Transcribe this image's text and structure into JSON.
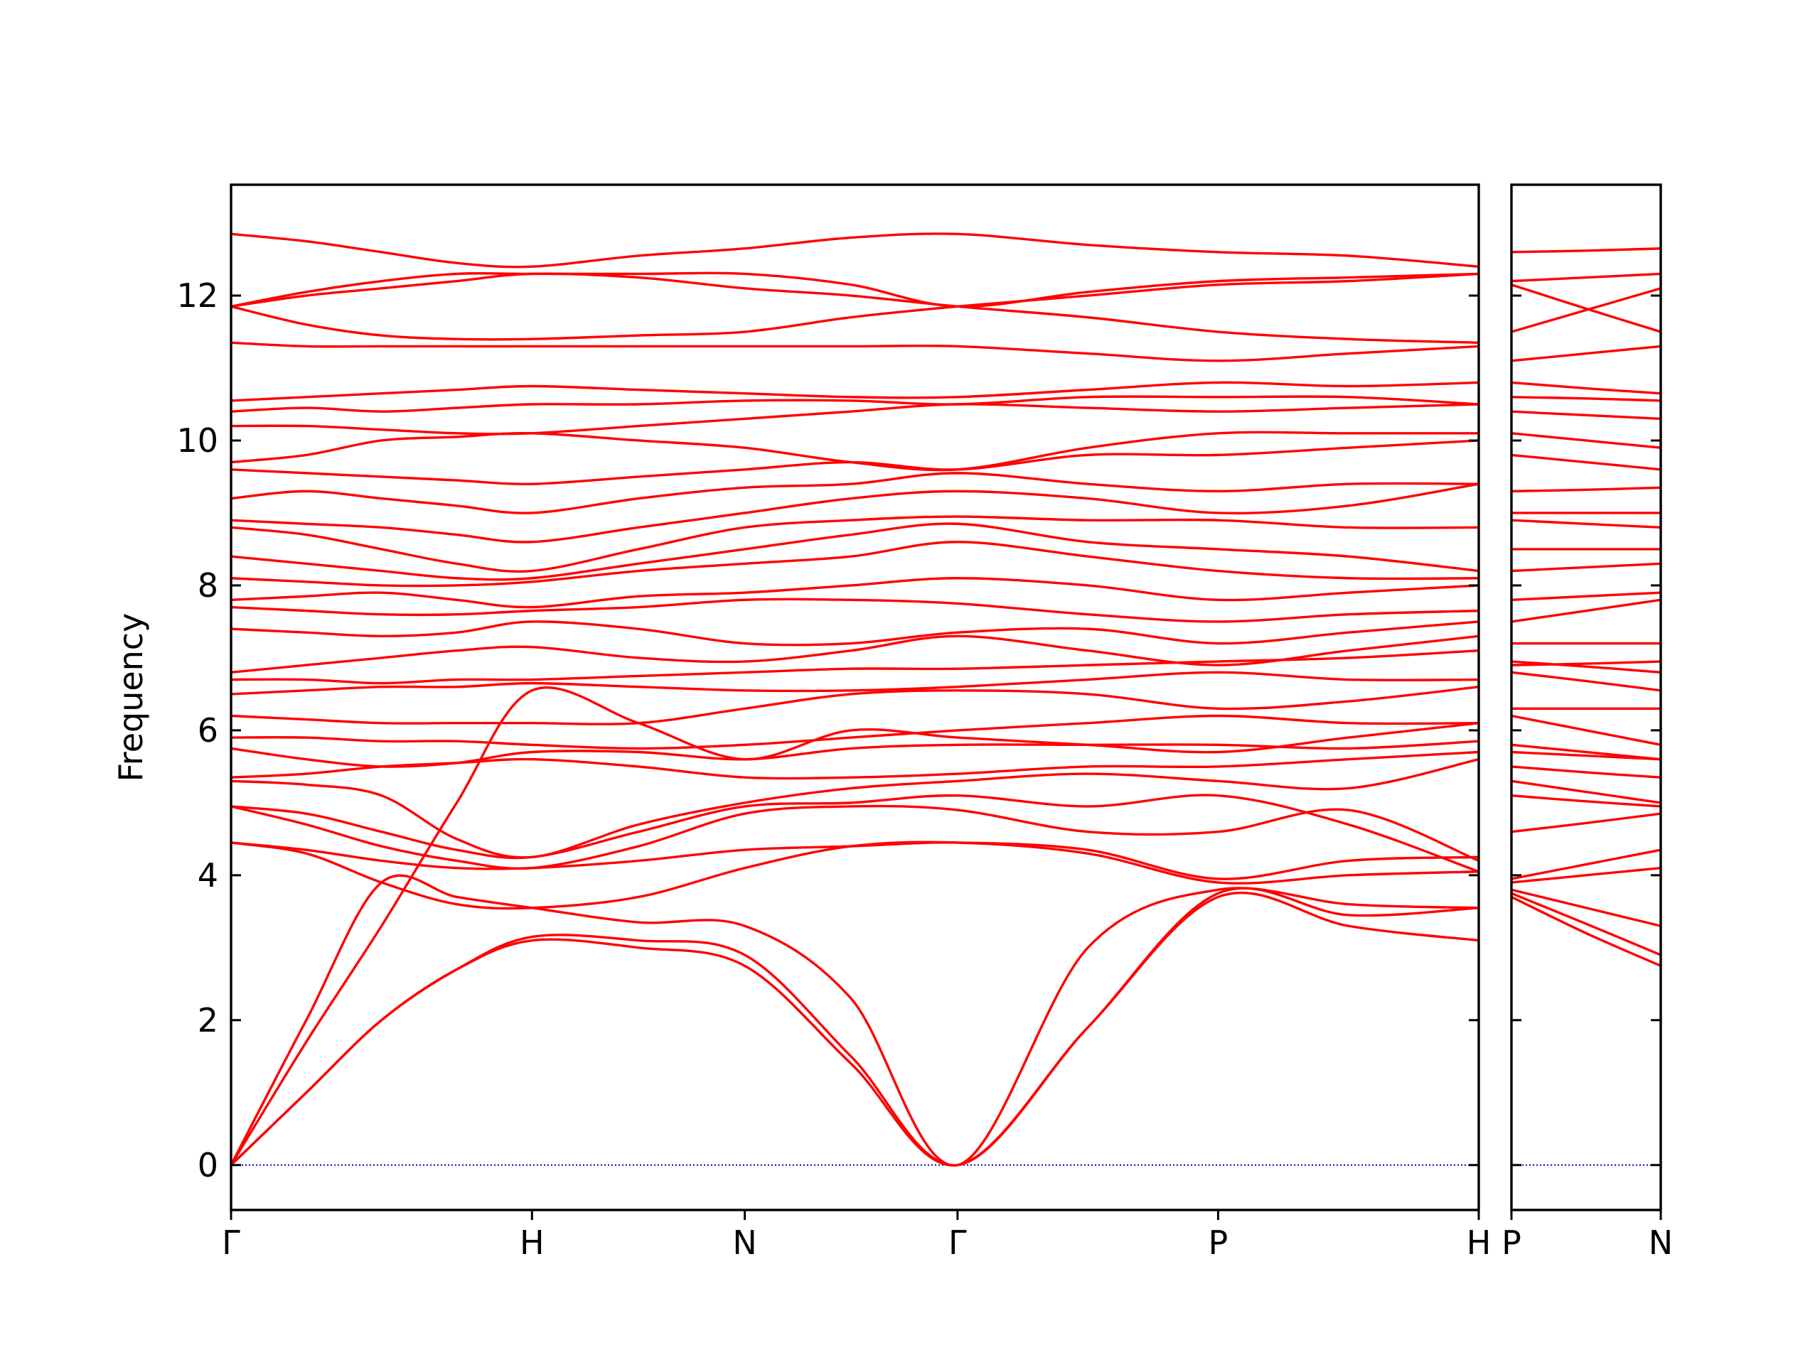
{
  "chart_data": [
    {
      "type": "line",
      "ylabel": "Frequency",
      "color": "#ff0000",
      "zero_line_color": "#0000cc",
      "xlim": [
        0,
        4.146
      ],
      "ylim": [
        -0.62,
        13.53
      ],
      "yticks": [
        0,
        2,
        4,
        6,
        8,
        10,
        12
      ],
      "show_ytick_labels": true,
      "xticks": [
        {
          "value": 0,
          "label": "Γ"
        },
        {
          "value": 1,
          "label": "H"
        },
        {
          "value": 1.707,
          "label": "N"
        },
        {
          "value": 2.414,
          "label": "Γ"
        },
        {
          "value": 3.28,
          "label": "P"
        },
        {
          "value": 4.146,
          "label": "H"
        }
      ],
      "x": [
        0,
        0.25,
        0.5,
        0.75,
        1,
        1.354,
        1.707,
        2.06,
        2.414,
        2.847,
        3.28,
        3.713,
        4.146
      ],
      "series": [
        {
          "values": [
            0,
            1.0,
            2.0,
            2.7,
            3.1,
            3.0,
            2.75,
            1.4,
            0,
            1.9,
            3.7,
            3.3,
            3.1
          ]
        },
        {
          "values": [
            0,
            1.0,
            2.0,
            2.7,
            3.15,
            3.1,
            2.9,
            1.5,
            0,
            1.9,
            3.75,
            3.45,
            3.55
          ]
        },
        {
          "values": [
            0,
            2.0,
            3.9,
            3.7,
            3.55,
            3.35,
            3.3,
            2.3,
            0,
            3.0,
            3.8,
            3.6,
            3.55
          ]
        },
        {
          "values": [
            0,
            1.7,
            3.3,
            5.0,
            6.55,
            6.1,
            5.6,
            6.0,
            5.9,
            5.8,
            5.7,
            5.9,
            6.1
          ]
        },
        {
          "values": [
            4.45,
            4.3,
            3.9,
            3.6,
            3.55,
            3.7,
            4.1,
            4.4,
            4.45,
            4.3,
            3.9,
            4.0,
            4.05
          ]
        },
        {
          "values": [
            4.45,
            4.35,
            4.2,
            4.1,
            4.1,
            4.2,
            4.35,
            4.4,
            4.45,
            4.35,
            3.95,
            4.2,
            4.25
          ]
        },
        {
          "values": [
            4.95,
            4.7,
            4.4,
            4.2,
            4.1,
            4.4,
            4.85,
            4.95,
            4.9,
            4.6,
            4.6,
            4.9,
            4.2
          ]
        },
        {
          "values": [
            4.95,
            4.85,
            4.6,
            4.35,
            4.25,
            4.6,
            4.95,
            5.0,
            5.1,
            4.95,
            5.1,
            4.7,
            4.05
          ]
        },
        {
          "values": [
            5.3,
            5.25,
            5.1,
            4.5,
            4.25,
            4.7,
            5.0,
            5.2,
            5.3,
            5.4,
            5.3,
            5.2,
            5.6
          ]
        },
        {
          "values": [
            5.35,
            5.4,
            5.5,
            5.55,
            5.6,
            5.5,
            5.35,
            5.35,
            5.4,
            5.5,
            5.5,
            5.6,
            5.7
          ]
        },
        {
          "values": [
            5.75,
            5.6,
            5.5,
            5.55,
            5.7,
            5.7,
            5.6,
            5.75,
            5.8,
            5.8,
            5.8,
            5.75,
            5.85
          ]
        },
        {
          "values": [
            5.9,
            5.9,
            5.85,
            5.85,
            5.8,
            5.75,
            5.8,
            5.9,
            6.0,
            6.1,
            6.2,
            6.1,
            6.1
          ]
        },
        {
          "values": [
            6.2,
            6.15,
            6.1,
            6.1,
            6.1,
            6.1,
            6.3,
            6.5,
            6.55,
            6.5,
            6.3,
            6.4,
            6.6
          ]
        },
        {
          "values": [
            6.5,
            6.55,
            6.6,
            6.6,
            6.65,
            6.6,
            6.55,
            6.55,
            6.6,
            6.7,
            6.8,
            6.7,
            6.7
          ]
        },
        {
          "values": [
            6.7,
            6.7,
            6.65,
            6.7,
            6.7,
            6.75,
            6.8,
            6.85,
            6.85,
            6.9,
            6.95,
            7.0,
            7.1
          ]
        },
        {
          "values": [
            6.8,
            6.9,
            7.0,
            7.1,
            7.15,
            7.0,
            6.95,
            7.1,
            7.3,
            7.1,
            6.9,
            7.1,
            7.3
          ]
        },
        {
          "values": [
            7.4,
            7.35,
            7.3,
            7.35,
            7.5,
            7.4,
            7.2,
            7.2,
            7.35,
            7.4,
            7.2,
            7.35,
            7.5
          ]
        },
        {
          "values": [
            7.7,
            7.65,
            7.6,
            7.6,
            7.65,
            7.7,
            7.8,
            7.8,
            7.75,
            7.6,
            7.5,
            7.6,
            7.65
          ]
        },
        {
          "values": [
            7.8,
            7.85,
            7.9,
            7.8,
            7.7,
            7.85,
            7.9,
            8.0,
            8.1,
            8.0,
            7.8,
            7.9,
            8.0
          ]
        },
        {
          "values": [
            8.1,
            8.05,
            8.0,
            8.0,
            8.05,
            8.2,
            8.3,
            8.4,
            8.6,
            8.4,
            8.2,
            8.1,
            8.1
          ]
        },
        {
          "values": [
            8.4,
            8.3,
            8.2,
            8.1,
            8.1,
            8.3,
            8.5,
            8.7,
            8.85,
            8.6,
            8.5,
            8.4,
            8.2
          ]
        },
        {
          "values": [
            8.8,
            8.7,
            8.5,
            8.3,
            8.2,
            8.5,
            8.8,
            8.9,
            8.95,
            8.9,
            8.9,
            8.8,
            8.8
          ]
        },
        {
          "values": [
            8.9,
            8.85,
            8.8,
            8.7,
            8.6,
            8.8,
            9.0,
            9.2,
            9.3,
            9.2,
            9.0,
            9.1,
            9.4
          ]
        },
        {
          "values": [
            9.2,
            9.3,
            9.2,
            9.1,
            9.0,
            9.2,
            9.35,
            9.4,
            9.55,
            9.4,
            9.3,
            9.4,
            9.4
          ]
        },
        {
          "values": [
            9.6,
            9.55,
            9.5,
            9.45,
            9.4,
            9.5,
            9.6,
            9.7,
            9.6,
            9.8,
            9.8,
            9.9,
            10.0
          ]
        },
        {
          "values": [
            9.7,
            9.8,
            10.0,
            10.05,
            10.1,
            10.0,
            9.9,
            9.7,
            9.6,
            9.9,
            10.1,
            10.1,
            10.1
          ]
        },
        {
          "values": [
            10.2,
            10.2,
            10.15,
            10.1,
            10.1,
            10.2,
            10.3,
            10.4,
            10.5,
            10.45,
            10.4,
            10.45,
            10.5
          ]
        },
        {
          "values": [
            10.4,
            10.45,
            10.4,
            10.45,
            10.5,
            10.5,
            10.55,
            10.55,
            10.5,
            10.6,
            10.6,
            10.6,
            10.5
          ]
        },
        {
          "values": [
            10.55,
            10.6,
            10.65,
            10.7,
            10.75,
            10.7,
            10.65,
            10.6,
            10.6,
            10.7,
            10.8,
            10.75,
            10.8
          ]
        },
        {
          "values": [
            11.35,
            11.3,
            11.3,
            11.3,
            11.3,
            11.3,
            11.3,
            11.3,
            11.3,
            11.2,
            11.1,
            11.2,
            11.3
          ]
        },
        {
          "values": [
            11.85,
            11.6,
            11.45,
            11.4,
            11.4,
            11.45,
            11.5,
            11.7,
            11.85,
            12.0,
            12.15,
            12.2,
            12.3
          ]
        },
        {
          "values": [
            11.85,
            12.0,
            12.1,
            12.2,
            12.3,
            12.25,
            12.1,
            12.0,
            11.85,
            11.7,
            11.5,
            11.4,
            11.35
          ]
        },
        {
          "values": [
            11.85,
            12.05,
            12.2,
            12.3,
            12.3,
            12.3,
            12.3,
            12.15,
            11.85,
            12.05,
            12.2,
            12.25,
            12.3
          ]
        },
        {
          "values": [
            12.85,
            12.75,
            12.6,
            12.45,
            12.4,
            12.55,
            12.65,
            12.8,
            12.85,
            12.7,
            12.6,
            12.55,
            12.4
          ]
        }
      ]
    },
    {
      "type": "line",
      "color": "#ff0000",
      "zero_line_color": "#0000cc",
      "xlim": [
        0,
        0.5
      ],
      "ylim": [
        -0.62,
        13.53
      ],
      "yticks": [
        0,
        2,
        4,
        6,
        8,
        10,
        12
      ],
      "show_ytick_labels": false,
      "xticks": [
        {
          "value": 0,
          "label": "P"
        },
        {
          "value": 0.5,
          "label": "N"
        }
      ],
      "x": [
        0,
        0.25,
        0.5
      ],
      "series": [
        {
          "values": [
            3.7,
            3.2,
            2.75
          ]
        },
        {
          "values": [
            3.75,
            3.33,
            2.9
          ]
        },
        {
          "values": [
            3.8,
            3.55,
            3.3
          ]
        },
        {
          "values": [
            5.7,
            5.65,
            5.6
          ]
        },
        {
          "values": [
            3.9,
            4.0,
            4.1
          ]
        },
        {
          "values": [
            3.95,
            4.15,
            4.35
          ]
        },
        {
          "values": [
            4.6,
            4.72,
            4.85
          ]
        },
        {
          "values": [
            5.1,
            5.02,
            4.95
          ]
        },
        {
          "values": [
            5.3,
            5.15,
            5.0
          ]
        },
        {
          "values": [
            5.5,
            5.42,
            5.35
          ]
        },
        {
          "values": [
            5.8,
            5.7,
            5.6
          ]
        },
        {
          "values": [
            6.2,
            6.0,
            5.8
          ]
        },
        {
          "values": [
            6.3,
            6.3,
            6.3
          ]
        },
        {
          "values": [
            6.8,
            6.68,
            6.55
          ]
        },
        {
          "values": [
            6.95,
            6.88,
            6.8
          ]
        },
        {
          "values": [
            6.9,
            6.92,
            6.95
          ]
        },
        {
          "values": [
            7.2,
            7.2,
            7.2
          ]
        },
        {
          "values": [
            7.5,
            7.65,
            7.8
          ]
        },
        {
          "values": [
            7.8,
            7.85,
            7.9
          ]
        },
        {
          "values": [
            8.2,
            8.25,
            8.3
          ]
        },
        {
          "values": [
            8.5,
            8.5,
            8.5
          ]
        },
        {
          "values": [
            8.9,
            8.85,
            8.8
          ]
        },
        {
          "values": [
            9.0,
            9.0,
            9.0
          ]
        },
        {
          "values": [
            9.3,
            9.32,
            9.35
          ]
        },
        {
          "values": [
            9.8,
            9.7,
            9.6
          ]
        },
        {
          "values": [
            10.1,
            10.0,
            9.9
          ]
        },
        {
          "values": [
            10.4,
            10.35,
            10.3
          ]
        },
        {
          "values": [
            10.6,
            10.58,
            10.55
          ]
        },
        {
          "values": [
            10.8,
            10.72,
            10.65
          ]
        },
        {
          "values": [
            11.1,
            11.2,
            11.3
          ]
        },
        {
          "values": [
            12.15,
            11.82,
            11.5
          ]
        },
        {
          "values": [
            11.5,
            11.8,
            12.1
          ]
        },
        {
          "values": [
            12.2,
            12.25,
            12.3
          ]
        },
        {
          "values": [
            12.6,
            12.62,
            12.65
          ]
        }
      ]
    }
  ]
}
